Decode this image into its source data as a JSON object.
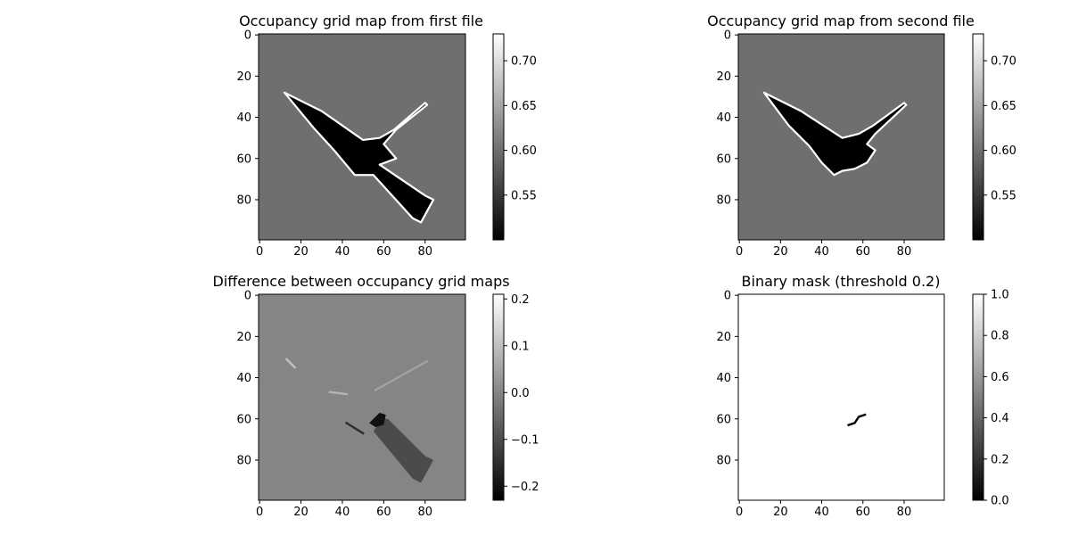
{
  "chart_data": [
    {
      "type": "heatmap",
      "title": "Occupancy grid map from first file",
      "grid_size": [
        100,
        100
      ],
      "cmap": "gray",
      "background_value": 0.6,
      "free_value": 0.5,
      "wall_value": 0.73,
      "xlim": [
        0,
        99
      ],
      "ylim": [
        99,
        0
      ],
      "xticks": [
        0,
        20,
        40,
        60,
        80
      ],
      "yticks": [
        0,
        20,
        40,
        60,
        80
      ],
      "colorbar": {
        "range": [
          0.5,
          0.73
        ],
        "ticks": [
          0.55,
          0.6,
          0.65,
          0.7
        ],
        "tick_labels": [
          "0.55",
          "0.60",
          "0.65",
          "0.70"
        ]
      },
      "free_regions": [
        [
          [
            12,
            28
          ],
          [
            30,
            37
          ],
          [
            50,
            51
          ],
          [
            58,
            50
          ],
          [
            65,
            46
          ],
          [
            80,
            33
          ],
          [
            81,
            34
          ],
          [
            66,
            46
          ],
          [
            60,
            53
          ],
          [
            66,
            60
          ],
          [
            58,
            63
          ],
          [
            80,
            78
          ],
          [
            84,
            80
          ],
          [
            78,
            91
          ],
          [
            74,
            89
          ],
          [
            55,
            68
          ],
          [
            46,
            68
          ],
          [
            36,
            56
          ],
          [
            26,
            45
          ]
        ]
      ]
    },
    {
      "type": "heatmap",
      "title": "Occupancy grid map from  second file",
      "grid_size": [
        100,
        100
      ],
      "cmap": "gray",
      "background_value": 0.6,
      "free_value": 0.5,
      "wall_value": 0.73,
      "xlim": [
        0,
        99
      ],
      "ylim": [
        99,
        0
      ],
      "xticks": [
        0,
        20,
        40,
        60,
        80
      ],
      "yticks": [
        0,
        20,
        40,
        60,
        80
      ],
      "colorbar": {
        "range": [
          0.5,
          0.73
        ],
        "ticks": [
          0.55,
          0.6,
          0.65,
          0.7
        ],
        "tick_labels": [
          "0.55",
          "0.60",
          "0.65",
          "0.70"
        ]
      },
      "free_regions": [
        [
          [
            12,
            28
          ],
          [
            30,
            37
          ],
          [
            50,
            50
          ],
          [
            58,
            48
          ],
          [
            65,
            44
          ],
          [
            80,
            33
          ],
          [
            81,
            34
          ],
          [
            66,
            48
          ],
          [
            62,
            53
          ],
          [
            66,
            56
          ],
          [
            62,
            62
          ],
          [
            56,
            65
          ],
          [
            50,
            66
          ],
          [
            46,
            68
          ],
          [
            40,
            62
          ],
          [
            34,
            54
          ],
          [
            24,
            44
          ]
        ]
      ]
    },
    {
      "type": "heatmap",
      "title": "Difference between occupancy grid maps",
      "grid_size": [
        100,
        100
      ],
      "cmap": "gray",
      "background_value": 0.0,
      "xlim": [
        0,
        99
      ],
      "ylim": [
        99,
        0
      ],
      "xticks": [
        0,
        20,
        40,
        60,
        80
      ],
      "yticks": [
        0,
        20,
        40,
        60,
        80
      ],
      "colorbar": {
        "range": [
          -0.23,
          0.21
        ],
        "ticks": [
          -0.2,
          -0.1,
          0.0,
          0.1,
          0.2
        ],
        "tick_labels": [
          "−0.2",
          "−0.1",
          "0.0",
          "0.1",
          "0.2"
        ]
      },
      "regions": [
        {
          "value": -0.1,
          "points": [
            [
              59,
              60
            ],
            [
              62,
              60
            ],
            [
              80,
              78
            ],
            [
              84,
              80
            ],
            [
              78,
              91
            ],
            [
              74,
              89
            ],
            [
              55,
              66
            ]
          ]
        },
        {
          "value": -0.2,
          "points": [
            [
              53,
              62
            ],
            [
              58,
              57
            ],
            [
              61,
              58
            ],
            [
              60,
              63
            ],
            [
              56,
              64
            ]
          ]
        }
      ],
      "segments": [
        {
          "value": 0.05,
          "points": [
            [
              56,
              46
            ],
            [
              81,
              32
            ]
          ]
        },
        {
          "value": 0.08,
          "points": [
            [
              34,
              47
            ],
            [
              42,
              48
            ]
          ]
        },
        {
          "value": 0.1,
          "points": [
            [
              13,
              31
            ],
            [
              17,
              35
            ]
          ]
        },
        {
          "value": -0.15,
          "points": [
            [
              42,
              62
            ],
            [
              50,
              67
            ]
          ]
        }
      ]
    },
    {
      "type": "heatmap",
      "title": "Binary mask (threshold 0.2)",
      "grid_size": [
        100,
        100
      ],
      "cmap": "gray",
      "background_value": 1.0,
      "xlim": [
        0,
        99
      ],
      "ylim": [
        99,
        0
      ],
      "xticks": [
        0,
        20,
        40,
        60,
        80
      ],
      "yticks": [
        0,
        20,
        40,
        60,
        80
      ],
      "colorbar": {
        "range": [
          0.0,
          1.0
        ],
        "ticks": [
          0.0,
          0.2,
          0.4,
          0.6,
          0.8,
          1.0
        ],
        "tick_labels": [
          "0.0",
          "0.2",
          "0.4",
          "0.6",
          "0.8",
          "1.0"
        ]
      },
      "segments": [
        {
          "value": 0.0,
          "points": [
            [
              53,
              63
            ],
            [
              56,
              62
            ],
            [
              58,
              59
            ],
            [
              61,
              58
            ]
          ]
        }
      ]
    }
  ]
}
